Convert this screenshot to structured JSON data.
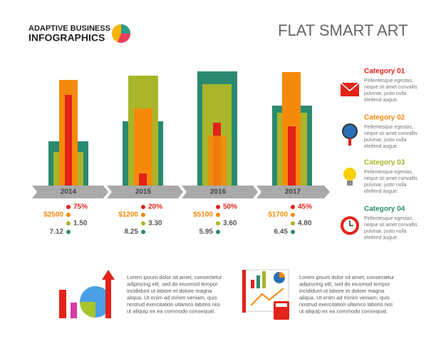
{
  "header": {
    "title_line1": "ADAPTIVE BUSINESS",
    "title_line2": "INFOGRAPHICS",
    "subtitle": "FLAT SMART ART"
  },
  "years": [
    {
      "label": "2014",
      "percent": "75%",
      "amount": "$2500",
      "value_a": "1.50",
      "value_b": "7.12"
    },
    {
      "label": "2015",
      "percent": "20%",
      "amount": "$1200",
      "value_a": "3.30",
      "value_b": "8.25"
    },
    {
      "label": "2016",
      "percent": "50%",
      "amount": "$5100",
      "value_a": "3.60",
      "value_b": "5.95"
    },
    {
      "label": "2017",
      "percent": "45%",
      "amount": "$1700",
      "value_a": "4.80",
      "value_b": "6.45"
    }
  ],
  "categories": [
    {
      "title": "Category 01",
      "lines": [
        "Pellentesque egestas,",
        "neque sit amet convallis",
        "pulvinar, justo nulla",
        "eleifend augue."
      ]
    },
    {
      "title": "Category 02",
      "lines": [
        "Pellentesque egestas,",
        "neque sit amet convallis",
        "pulvinar, justo nulla",
        "eleifend augue."
      ]
    },
    {
      "title": "Category 03",
      "lines": [
        "Pellentesque egestas,",
        "neque sit amet convallis",
        "pulvinar, justo nulla",
        "eleifend augue."
      ]
    },
    {
      "title": "Category 04",
      "lines": [
        "Pellentesque egestas,",
        "neque sit amet convallis",
        "pulvinar, justo nulla",
        "eleifend augue."
      ]
    }
  ],
  "notes": [
    {
      "lines": [
        "Lorem ipsum dolor sit amet, consectetur",
        "adipiscing elit, sed do eiusmod tempor",
        "incididunt ut labore et dolore magna",
        "aliqua. Ut enim ad minim veniam, quis",
        "nostrud exercitation ullamco laboris nisi",
        "ut aliquip ex ea commodo consequat."
      ]
    },
    {
      "lines": [
        "Lorem ipsum dolor sit amet, consectetur",
        "adipiscing elit, sed do eiusmod tempor",
        "incididunt ut labore et dolore magna",
        "aliqua. Ut enim ad minim veniam, quis",
        "nostrud exercitation ullamco laboris nisi",
        "ut aliquip ex ea commodo consequat."
      ]
    }
  ]
}
